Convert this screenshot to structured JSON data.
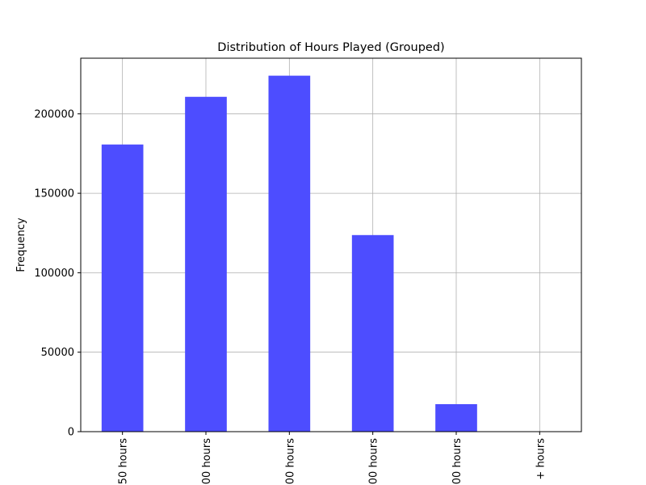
{
  "chart_data": {
    "type": "bar",
    "title": "Distribution of Hours Played (Grouped)",
    "y_label": "Frequency",
    "categories": [
      "50 hours",
      "00 hours",
      "00 hours",
      "00 hours",
      "00 hours",
      "+ hours"
    ],
    "values": [
      180700,
      210700,
      224000,
      123700,
      17300,
      0
    ],
    "color": "#4d4dff",
    "ylim": [
      0,
      235000
    ],
    "yticks": [
      0,
      50000,
      100000,
      150000,
      200000
    ],
    "grid": true
  }
}
